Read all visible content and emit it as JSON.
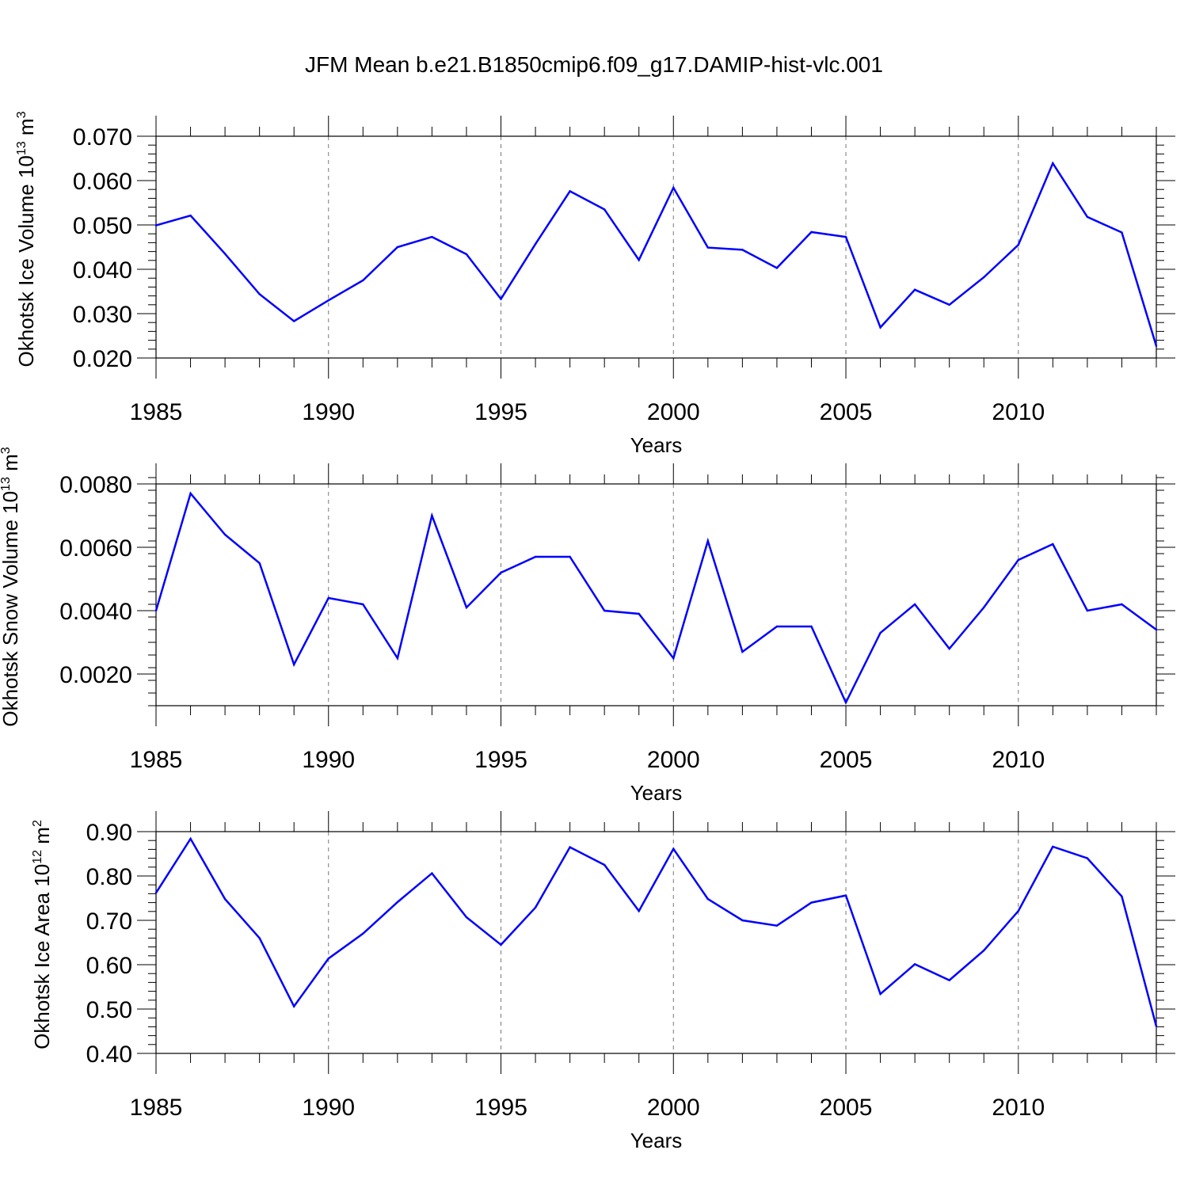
{
  "figure": {
    "title": "JFM Mean b.e21.B1850cmip6.f09_g17.DAMIP-hist-vlc.001",
    "line_color": "#0000ff"
  },
  "chart_data": [
    {
      "type": "line",
      "ylabel": "Okhotsk Ice Volume",
      "ylabel_unit_base": "10",
      "ylabel_unit_exp": "13",
      "ylabel_unit": "m",
      "ylabel_unit_unit_exp": "3",
      "xlabel": "Years",
      "xlim": [
        1985,
        2014
      ],
      "ylim": [
        0.02,
        0.07
      ],
      "x_ticks": [
        "1985",
        "1990",
        "1995",
        "2000",
        "2005",
        "2010"
      ],
      "y_ticks": [
        "0.020",
        "0.030",
        "0.040",
        "0.050",
        "0.060",
        "0.070"
      ],
      "grid": "vertical dashed at major ticks",
      "x": [
        1985,
        1986,
        1987,
        1988,
        1989,
        1990,
        1991,
        1992,
        1993,
        1994,
        1995,
        1996,
        1997,
        1998,
        1999,
        2000,
        2001,
        2002,
        2003,
        2004,
        2005,
        2006,
        2007,
        2008,
        2009,
        2010,
        2011,
        2012,
        2013,
        2014
      ],
      "values": [
        0.0499,
        0.0521,
        0.0435,
        0.0344,
        0.0283,
        0.033,
        0.0375,
        0.045,
        0.0473,
        0.0434,
        0.0333,
        0.0457,
        0.0576,
        0.0535,
        0.0421,
        0.0584,
        0.0449,
        0.0444,
        0.0403,
        0.0484,
        0.0473,
        0.0269,
        0.0354,
        0.032,
        0.0382,
        0.0455,
        0.0639,
        0.0518,
        0.0483,
        0.0227
      ]
    },
    {
      "type": "line",
      "ylabel": "Okhotsk Snow Volume",
      "ylabel_unit_base": "10",
      "ylabel_unit_exp": "13",
      "ylabel_unit": "m",
      "ylabel_unit_unit_exp": "3",
      "xlabel": "Years",
      "xlim": [
        1985,
        2014
      ],
      "ylim": [
        0.001,
        0.008
      ],
      "x_ticks": [
        "1985",
        "1990",
        "1995",
        "2000",
        "2005",
        "2010"
      ],
      "y_ticks": [
        "0.0020",
        "0.0040",
        "0.0060",
        "0.0080"
      ],
      "grid": "vertical dashed at major ticks",
      "x": [
        1985,
        1986,
        1987,
        1988,
        1989,
        1990,
        1991,
        1992,
        1993,
        1994,
        1995,
        1996,
        1997,
        1998,
        1999,
        2000,
        2001,
        2002,
        2003,
        2004,
        2005,
        2006,
        2007,
        2008,
        2009,
        2010,
        2011,
        2012,
        2013,
        2014
      ],
      "values": [
        0.004,
        0.0077,
        0.0064,
        0.0055,
        0.0023,
        0.0044,
        0.0042,
        0.0025,
        0.007,
        0.0041,
        0.0052,
        0.0057,
        0.0057,
        0.004,
        0.0039,
        0.0025,
        0.0062,
        0.0027,
        0.0035,
        0.0035,
        0.0011,
        0.0033,
        0.0042,
        0.0028,
        0.0041,
        0.0056,
        0.0061,
        0.004,
        0.0042,
        0.0034
      ]
    },
    {
      "type": "line",
      "ylabel": "Okhotsk Ice Area",
      "ylabel_unit_base": "10",
      "ylabel_unit_exp": "12",
      "ylabel_unit": "m",
      "ylabel_unit_unit_exp": "2",
      "xlabel": "Years",
      "xlim": [
        1985,
        2014
      ],
      "ylim": [
        0.4,
        0.9
      ],
      "x_ticks": [
        "1985",
        "1990",
        "1995",
        "2000",
        "2005",
        "2010"
      ],
      "y_ticks": [
        "0.40",
        "0.50",
        "0.60",
        "0.70",
        "0.80",
        "0.90"
      ],
      "grid": "vertical dashed at major ticks",
      "x": [
        1985,
        1986,
        1987,
        1988,
        1989,
        1990,
        1991,
        1992,
        1993,
        1994,
        1995,
        1996,
        1997,
        1998,
        1999,
        2000,
        2001,
        2002,
        2003,
        2004,
        2005,
        2006,
        2007,
        2008,
        2009,
        2010,
        2011,
        2012,
        2013,
        2014
      ],
      "values": [
        0.762,
        0.884,
        0.748,
        0.66,
        0.506,
        0.614,
        0.67,
        0.741,
        0.806,
        0.707,
        0.645,
        0.729,
        0.865,
        0.825,
        0.721,
        0.861,
        0.748,
        0.7,
        0.688,
        0.74,
        0.756,
        0.534,
        0.601,
        0.565,
        0.632,
        0.721,
        0.866,
        0.84,
        0.754,
        0.461
      ]
    }
  ]
}
